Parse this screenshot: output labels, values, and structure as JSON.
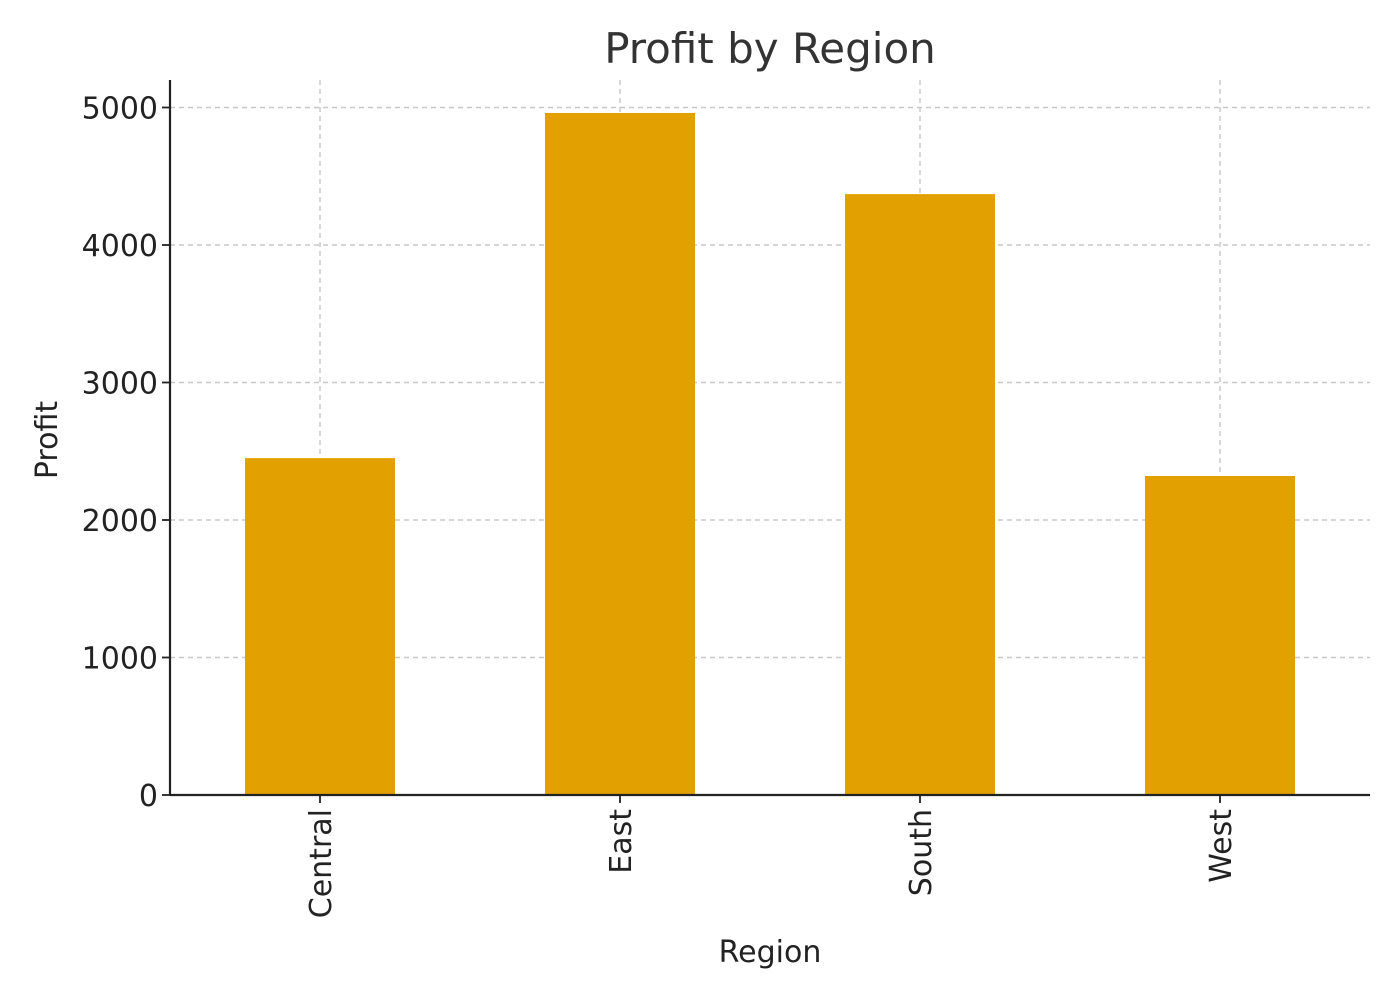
{
  "chart_data": {
    "type": "bar",
    "title": "Profit by Region",
    "xlabel": "Region",
    "ylabel": "Profit",
    "categories": [
      "Central",
      "East",
      "South",
      "West"
    ],
    "values": [
      2450,
      4960,
      4370,
      2320
    ],
    "ylim": [
      0,
      5200
    ],
    "yticks": [
      0,
      1000,
      2000,
      3000,
      4000,
      5000
    ],
    "grid": true,
    "bar_color": "#E3A100",
    "x_tick_rotation": "vertical"
  }
}
